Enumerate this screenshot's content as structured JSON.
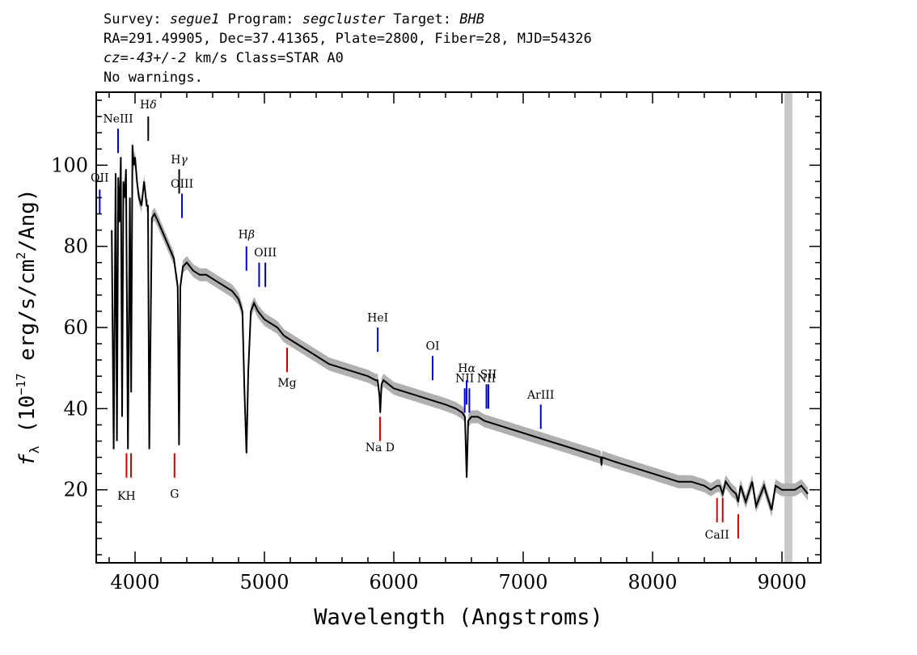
{
  "header": {
    "survey_label": "Survey:",
    "survey": "segue1",
    "program_label": "Program:",
    "program": "segcluster",
    "target_label": "Target:",
    "target": "BHB",
    "line2": "RA=291.49905, Dec=37.41365, Plate=2800, Fiber=28, MJD=54326",
    "cz_label": "cz=",
    "cz_value": "-43+/-2",
    "cz_rest": "km/s Class=STAR A0",
    "warnings": "No warnings."
  },
  "chart_data": {
    "type": "line",
    "xlabel": "Wavelength (Angstroms)",
    "ylabel_main": "f",
    "ylabel_sub": "λ",
    "ylabel_rest": "(10",
    "ylabel_exp": "−17",
    "ylabel_units": "erg/s/cm",
    "ylabel_sq": "2",
    "ylabel_tail": "/Ang)",
    "xlim": [
      3700,
      9300
    ],
    "ylim": [
      2,
      118
    ],
    "x_ticks": [
      4000,
      5000,
      6000,
      7000,
      8000,
      9000
    ],
    "x_tick_labels": [
      "4000",
      "5000",
      "6000",
      "7000",
      "8000",
      "9000"
    ],
    "y_ticks": [
      20,
      40,
      60,
      80,
      100
    ],
    "y_tick_labels": [
      "20",
      "40",
      "60",
      "80",
      "100"
    ],
    "masked_band": [
      9020,
      9080
    ],
    "series": [
      {
        "color": "#000000",
        "error_color": "#b0b0b0",
        "x": [
          3820,
          3835,
          3850,
          3860,
          3870,
          3880,
          3890,
          3900,
          3910,
          3920,
          3930,
          3945,
          3960,
          3970,
          3980,
          3990,
          4000,
          4015,
          4030,
          4050,
          4070,
          4090,
          4100,
          4110,
          4130,
          4150,
          4180,
          4220,
          4260,
          4300,
          4330,
          4340,
          4350,
          4370,
          4400,
          4450,
          4500,
          4550,
          4600,
          4650,
          4700,
          4750,
          4800,
          4830,
          4845,
          4861,
          4875,
          4895,
          4920,
          4950,
          5000,
          5050,
          5100,
          5150,
          5200,
          5300,
          5400,
          5500,
          5600,
          5700,
          5800,
          5860,
          5875,
          5890,
          5895,
          5905,
          5920,
          6000,
          6100,
          6200,
          6300,
          6400,
          6480,
          6530,
          6550,
          6563,
          6575,
          6600,
          6650,
          6700,
          6800,
          6900,
          7000,
          7100,
          7200,
          7300,
          7400,
          7500,
          7600,
          7605,
          7610,
          7700,
          7800,
          7900,
          8000,
          8100,
          8200,
          8300,
          8400,
          8450,
          8498,
          8520,
          8542,
          8565,
          8610,
          8645,
          8662,
          8680,
          8720,
          8770,
          8800,
          8862,
          8880,
          8920,
          8950,
          9000,
          9100,
          9150,
          9200
        ],
        "values": [
          84,
          30,
          98,
          32,
          97,
          86,
          102,
          38,
          96,
          92,
          99,
          30,
          92,
          44,
          105,
          100,
          102,
          96,
          92,
          90,
          96,
          90,
          90,
          30,
          87,
          88,
          86,
          83,
          80,
          77,
          70,
          31,
          70,
          75,
          76,
          74,
          73,
          73,
          72,
          71,
          70,
          69,
          67,
          64,
          45,
          29,
          49,
          64,
          66,
          64,
          62,
          61,
          60,
          58,
          57,
          55,
          53,
          51,
          50,
          49,
          48,
          47,
          47,
          43,
          39,
          46,
          47,
          45,
          44,
          43,
          42,
          41,
          40,
          39,
          38,
          23,
          37,
          38,
          38,
          37,
          36,
          35,
          34,
          33,
          32,
          31,
          30,
          29,
          28,
          26,
          28,
          27,
          26,
          25,
          24,
          23,
          22,
          22,
          21,
          20,
          21,
          21,
          19,
          22,
          20,
          19,
          17,
          21,
          17,
          22,
          16,
          21,
          19,
          15,
          21,
          20,
          20,
          21,
          19
        ]
      }
    ],
    "lines": [
      {
        "label": "OII",
        "wave": 3727,
        "y0": 88,
        "y1": 94,
        "color": "#0000cc",
        "label_y": 96
      },
      {
        "label": "NeIII",
        "wave": 3869,
        "y0": 103,
        "y1": 109,
        "color": "#0000cc",
        "label_y": 110.5
      },
      {
        "label": "H",
        "sym": "δ",
        "wave": 4102,
        "y0": 106,
        "y1": 112,
        "color": "#000000",
        "label_y": 114
      },
      {
        "label": "H",
        "sym": "γ",
        "wave": 4341,
        "y0": 93,
        "y1": 99,
        "color": "#000000",
        "label_y": 100.5
      },
      {
        "label": "OIII",
        "wave": 4363,
        "y0": 87,
        "y1": 93,
        "color": "#0000cc",
        "label_y": 94.5
      },
      {
        "label": "H",
        "sym": "β",
        "wave": 4861,
        "y0": 74,
        "y1": 80,
        "color": "#0000cc",
        "label_y": 82
      },
      {
        "label": "OIII",
        "wave": 4959,
        "y0": 70,
        "y1": 76,
        "color": "#0000cc",
        "label_y": -1
      },
      {
        "label": "OIII",
        "wave": 5007,
        "y0": 70,
        "y1": 76,
        "color": "#0000cc",
        "label_y": 77.5
      },
      {
        "label": "HeI",
        "wave": 5876,
        "y0": 54,
        "y1": 60,
        "color": "#0000cc",
        "label_y": 61.5
      },
      {
        "label": "OI",
        "wave": 6300,
        "y0": 47,
        "y1": 53,
        "color": "#0000cc",
        "label_y": 54.5
      },
      {
        "label": "NII",
        "wave": 6548,
        "y0": 39,
        "y1": 45,
        "color": "#0000cc",
        "label_y": 46.5
      },
      {
        "label": "H",
        "sym": "α",
        "wave": 6563,
        "y0": 41,
        "y1": 47,
        "color": "#0000cc",
        "label_y": 49
      },
      {
        "label": "NII",
        "wave": 6584,
        "y0": 39,
        "y1": 45,
        "color": "#0000cc",
        "label_y": -1
      },
      {
        "label": "NII",
        "wave": 6716,
        "y0": 40,
        "y1": 46,
        "color": "#0000cc",
        "label_y": 46.5
      },
      {
        "label": "SII",
        "wave": 6731,
        "y0": 40,
        "y1": 46,
        "color": "#0000cc",
        "label_y": 47.5
      },
      {
        "label": "ArIII",
        "wave": 7136,
        "y0": 35,
        "y1": 41,
        "color": "#0000cc",
        "label_y": 42.5
      },
      {
        "label": "Mg",
        "wave": 5175,
        "y0": 49,
        "y1": 55,
        "color": "#cc0000",
        "label_y": 45.5
      },
      {
        "label": "Na  D",
        "wave": 5893,
        "y0": 32,
        "y1": 38,
        "color": "#cc0000",
        "label_y": 29.5
      },
      {
        "label": "KH",
        "wave": 3934,
        "y0": 23,
        "y1": 29,
        "color": "#cc0000",
        "label_y": 17.5
      },
      {
        "label": "",
        "wave": 3969,
        "y0": 23,
        "y1": 29,
        "color": "#cc0000",
        "label_y": -1
      },
      {
        "label": "G",
        "wave": 4305,
        "y0": 23,
        "y1": 29,
        "color": "#cc0000",
        "label_y": 18
      },
      {
        "label": "CaII",
        "wave": 8498,
        "y0": 12,
        "y1": 18,
        "color": "#cc0000",
        "label_y": 8
      },
      {
        "label": "",
        "wave": 8542,
        "y0": 12,
        "y1": 18,
        "color": "#cc0000",
        "label_y": -1
      },
      {
        "label": "",
        "wave": 8662,
        "y0": 8,
        "y1": 14,
        "color": "#cc0000",
        "label_y": -1
      }
    ]
  }
}
